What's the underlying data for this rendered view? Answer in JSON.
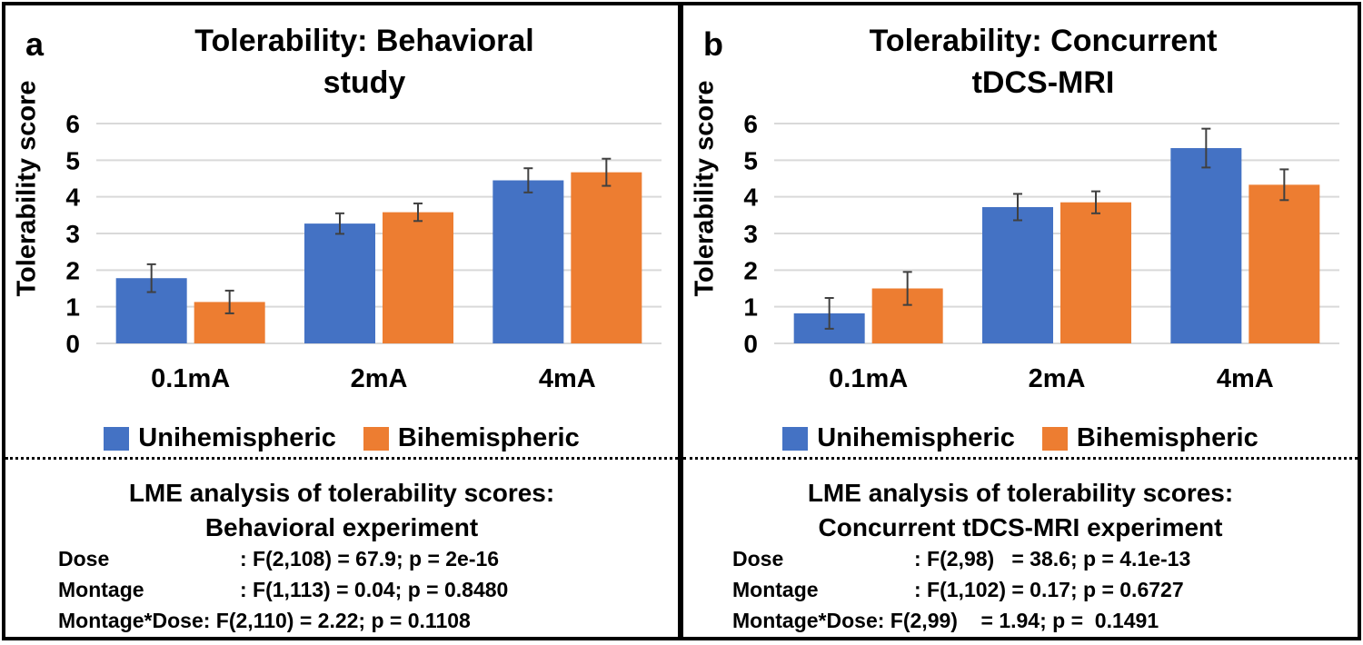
{
  "colors": {
    "unihemispheric": "#4472C4",
    "bihemispheric": "#ED7D31",
    "grid": "#d9d9d9"
  },
  "chart_data": [
    {
      "type": "bar",
      "panel": "a",
      "title": "Tolerability: Behavioral study",
      "title_lines": [
        "Tolerability: Behavioral",
        "study"
      ],
      "ylabel": "Tolerability score",
      "ylim": [
        0,
        6
      ],
      "yticks": [
        "0",
        "1",
        "2",
        "3",
        "4",
        "5",
        "6"
      ],
      "categories": [
        "0.1mA",
        "2mA",
        "4mA"
      ],
      "series": [
        {
          "name": "Unihemispheric",
          "values": [
            1.78,
            3.27,
            4.45
          ],
          "errors": [
            0.38,
            0.28,
            0.33
          ]
        },
        {
          "name": "Bihemispheric",
          "values": [
            1.13,
            3.58,
            4.67
          ],
          "errors": [
            0.31,
            0.24,
            0.37
          ]
        }
      ],
      "legend": "bottom"
    },
    {
      "type": "bar",
      "panel": "b",
      "title": "Tolerability: Concurrent tDCS-MRI",
      "title_lines": [
        "Tolerability: Concurrent",
        "tDCS-MRI"
      ],
      "ylabel": "Tolerability score",
      "ylim": [
        0,
        6
      ],
      "yticks": [
        "0",
        "1",
        "2",
        "3",
        "4",
        "5",
        "6"
      ],
      "categories": [
        "0.1mA",
        "2mA",
        "4mA"
      ],
      "series": [
        {
          "name": "Unihemispheric",
          "values": [
            0.82,
            3.72,
            5.33
          ],
          "errors": [
            0.42,
            0.36,
            0.53
          ]
        },
        {
          "name": "Bihemispheric",
          "values": [
            1.5,
            3.85,
            4.33
          ],
          "errors": [
            0.45,
            0.3,
            0.42
          ]
        }
      ],
      "legend": "bottom"
    }
  ],
  "panel_a": {
    "letter": "a",
    "title_line1": "Tolerability: Behavioral",
    "title_line2": "study",
    "lme_title_line1": "LME analysis of tolerability scores:",
    "lme_title_line2": "Behavioral experiment",
    "stats": [
      {
        "label": "Dose",
        "value": ": F(2,108) = 67.9; p = 2e-16"
      },
      {
        "label": "Montage",
        "value": ": F(1,113) = 0.04; p = 0.8480"
      },
      {
        "label": "Montage*Dose",
        "value": ": F(2,110) = 2.22; p = 0.1108"
      }
    ]
  },
  "panel_b": {
    "letter": "b",
    "title_line1": "Tolerability: Concurrent",
    "title_line2": "tDCS-MRI",
    "lme_title_line1": "LME analysis of tolerability scores:",
    "lme_title_line2": "Concurrent tDCS-MRI experiment",
    "stats": [
      {
        "label": "Dose",
        "value": ": F(2,98)   = 38.6; p = 4.1e-13"
      },
      {
        "label": "Montage",
        "value": ": F(1,102) = 0.17; p = 0.6727"
      },
      {
        "label": "Montage*Dose",
        "value": ": F(2,99)    = 1.94; p =  0.1491"
      }
    ]
  }
}
